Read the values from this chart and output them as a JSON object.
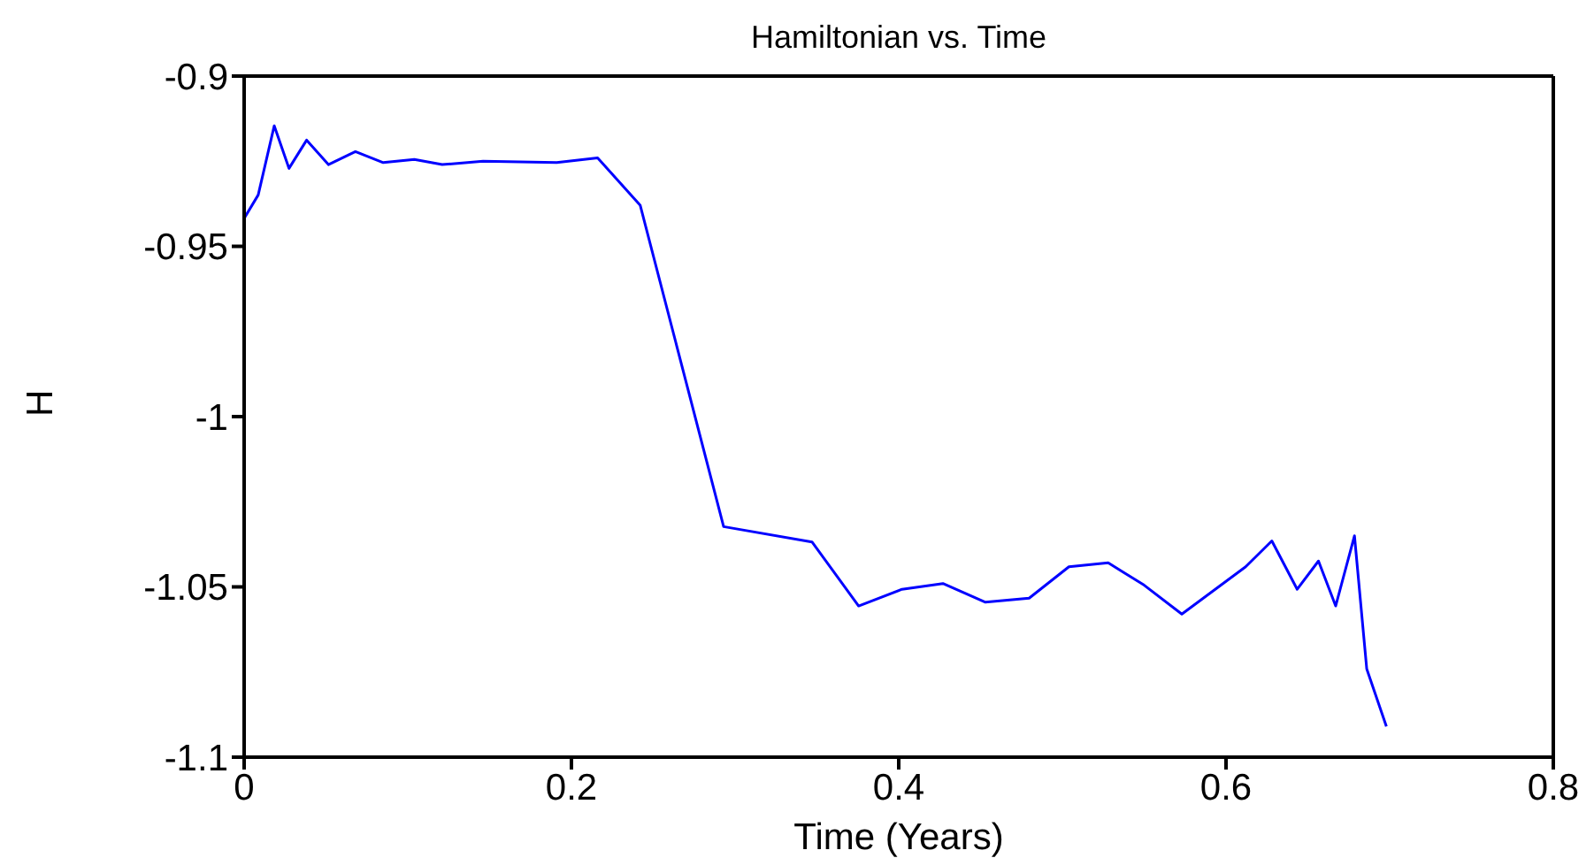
{
  "chart_data": {
    "type": "line",
    "title": "Hamiltonian vs. Time",
    "xlabel": "Time (Years)",
    "ylabel": "H",
    "x": [
      0,
      0.0086,
      0.0184,
      0.0274,
      0.0382,
      0.0515,
      0.068,
      0.085,
      0.104,
      0.121,
      0.146,
      0.191,
      0.216,
      0.242,
      0.293,
      0.347,
      0.3755,
      0.402,
      0.427,
      0.453,
      0.4797,
      0.504,
      0.528,
      0.55,
      0.573,
      0.612,
      0.628,
      0.6435,
      0.6565,
      0.667,
      0.6785,
      0.686,
      0.698
    ],
    "series": [
      {
        "color": "#0000ff",
        "values": [
          -0.9418,
          -0.9349,
          -0.9146,
          -0.9271,
          -0.9188,
          -0.926,
          -0.9222,
          -0.9254,
          -0.9245,
          -0.926,
          -0.925,
          -0.9254,
          -0.924,
          -0.9379,
          -1.0323,
          -1.0368,
          -1.0556,
          -1.0507,
          -1.049,
          -1.0545,
          -1.0533,
          -1.0441,
          -1.0429,
          -1.0495,
          -1.058,
          -1.0441,
          -1.0365,
          -1.0507,
          -1.0424,
          -1.0556,
          -1.035,
          -1.0741,
          -1.091
        ]
      }
    ],
    "xlim": [
      0,
      0.8
    ],
    "xticks": [
      0,
      0.2,
      0.4,
      0.6,
      0.8
    ],
    "ylim": [
      -1.1,
      -0.9
    ],
    "yticks": [
      -1.1,
      -1.05,
      -1,
      -0.95,
      -0.9
    ],
    "grid": false,
    "legend": false,
    "marker": "none",
    "line_style": "solid"
  }
}
